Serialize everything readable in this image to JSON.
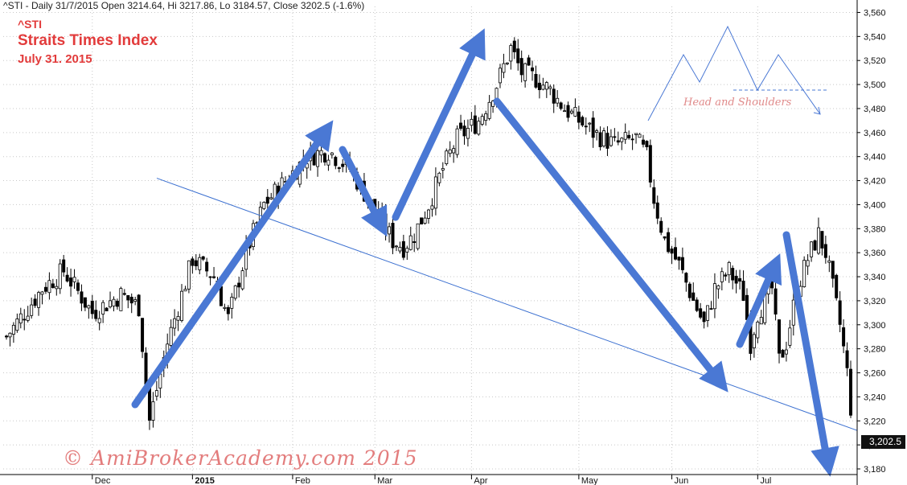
{
  "header": {
    "info": "^STI - Daily 31/7/2015 Open 3214.64, Hi 3217.86, Lo 3184.57, Close 3202.5 (-1.6%)",
    "ticker": "^STI",
    "title": "Straits Times Index",
    "date": "July 31. 2015"
  },
  "watermark": "© AmiBrokerAcademy.com 2015",
  "pattern_label": "Head and Shoulders",
  "last_value_label": "3,202.5",
  "colors": {
    "annotation_red": "#e23b3b",
    "arrow_blue": "#4a78d4",
    "line_blue": "#3a6fd0",
    "candle": "#000000",
    "background": "#ffffff"
  },
  "chart_data": {
    "type": "candlestick",
    "ylim": [
      3180,
      3565
    ],
    "yticks": [
      3180,
      3200,
      3220,
      3240,
      3260,
      3280,
      3300,
      3320,
      3340,
      3360,
      3380,
      3400,
      3420,
      3440,
      3460,
      3480,
      3500,
      3520,
      3540,
      3560
    ],
    "ytick_labels": [
      "3,180",
      "3,200",
      "3,220",
      "3,240",
      "3,260",
      "3,280",
      "3,300",
      "3,320",
      "3,340",
      "3,360",
      "3,380",
      "3,400",
      "3,420",
      "3,440",
      "3,460",
      "3,480",
      "3,500",
      "3,520",
      "3,540",
      "3,560"
    ],
    "xtick_labels": [
      "Dec",
      "2015",
      "Feb",
      "Mar",
      "Apr",
      "May",
      "Jun",
      "Jul"
    ],
    "xtick_index": [
      24,
      52,
      80,
      103,
      130,
      160,
      186,
      210
    ],
    "n_bars": 237,
    "close_path": [
      [
        0,
        3290
      ],
      [
        10,
        3330
      ],
      [
        16,
        3345
      ],
      [
        24,
        3310
      ],
      [
        32,
        3325
      ],
      [
        37,
        3315
      ],
      [
        40,
        3220
      ],
      [
        45,
        3285
      ],
      [
        52,
        3355
      ],
      [
        58,
        3340
      ],
      [
        62,
        3305
      ],
      [
        67,
        3360
      ],
      [
        72,
        3400
      ],
      [
        78,
        3420
      ],
      [
        84,
        3440
      ],
      [
        90,
        3445
      ],
      [
        96,
        3430
      ],
      [
        100,
        3410
      ],
      [
        104,
        3390
      ],
      [
        108,
        3370
      ],
      [
        111,
        3365
      ],
      [
        114,
        3375
      ],
      [
        118,
        3400
      ],
      [
        122,
        3430
      ],
      [
        126,
        3455
      ],
      [
        132,
        3470
      ],
      [
        137,
        3500
      ],
      [
        141,
        3530
      ],
      [
        144,
        3510
      ],
      [
        148,
        3505
      ],
      [
        152,
        3495
      ],
      [
        156,
        3480
      ],
      [
        160,
        3470
      ],
      [
        164,
        3460
      ],
      [
        170,
        3450
      ],
      [
        176,
        3455
      ],
      [
        179,
        3440
      ],
      [
        181,
        3405
      ],
      [
        184,
        3370
      ],
      [
        188,
        3350
      ],
      [
        192,
        3320
      ],
      [
        195,
        3300
      ],
      [
        198,
        3330
      ],
      [
        202,
        3345
      ],
      [
        206,
        3325
      ],
      [
        208,
        3285
      ],
      [
        210,
        3310
      ],
      [
        214,
        3330
      ],
      [
        216,
        3270
      ],
      [
        218,
        3285
      ],
      [
        221,
        3330
      ],
      [
        224,
        3355
      ],
      [
        227,
        3375
      ],
      [
        229,
        3360
      ],
      [
        231,
        3330
      ],
      [
        233,
        3300
      ],
      [
        235,
        3260
      ],
      [
        237,
        3202.5
      ]
    ],
    "trendline": [
      [
        3422,
        46
      ],
      [
        3212,
        252
      ]
    ],
    "last_close": 3202.5
  }
}
